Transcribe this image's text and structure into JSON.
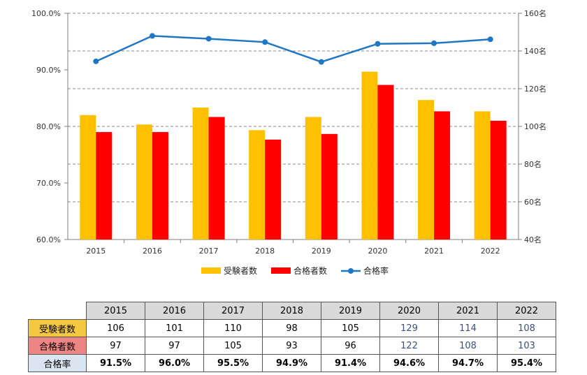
{
  "chart_data": {
    "type": "bar",
    "categories": [
      "2015",
      "2016",
      "2017",
      "2018",
      "2019",
      "2020",
      "2021",
      "2022"
    ],
    "series": [
      {
        "name": "受験者数",
        "type": "bar",
        "axis": "right",
        "color": "#ffc000",
        "values": [
          106,
          101,
          110,
          98,
          105,
          129,
          114,
          108
        ]
      },
      {
        "name": "合格者数",
        "type": "bar",
        "axis": "right",
        "color": "#ff0000",
        "values": [
          97,
          97,
          105,
          93,
          96,
          122,
          108,
          103
        ]
      },
      {
        "name": "合格率",
        "type": "line",
        "axis": "left",
        "color": "#1f77c4",
        "values": [
          91.5,
          96.0,
          95.5,
          94.9,
          91.4,
          94.6,
          94.7,
          95.4
        ]
      }
    ],
    "left_axis": {
      "range": [
        60,
        100
      ],
      "ticks": [
        "60.0%",
        "70.0%",
        "80.0%",
        "90.0%",
        "100.0%"
      ]
    },
    "right_axis": {
      "range": [
        40,
        160
      ],
      "ticks": [
        "40名",
        "60名",
        "80名",
        "100名",
        "120名",
        "140名",
        "160名"
      ]
    },
    "grid": "dashed horizontal",
    "legend_position": "bottom"
  },
  "table": {
    "years": [
      "2015",
      "2016",
      "2017",
      "2018",
      "2019",
      "2020",
      "2021",
      "2022"
    ],
    "rows": [
      {
        "label": "受験者数",
        "values": [
          "106",
          "101",
          "110",
          "98",
          "105",
          "129",
          "114",
          "108"
        ]
      },
      {
        "label": "合格者数",
        "values": [
          "97",
          "97",
          "105",
          "93",
          "96",
          "122",
          "108",
          "103"
        ]
      },
      {
        "label": "合格率",
        "values": [
          "91.5%",
          "96.0%",
          "95.5%",
          "94.9%",
          "91.4%",
          "94.6%",
          "94.7%",
          "95.4%"
        ]
      }
    ]
  },
  "colors": {
    "applicants": "#ffc000",
    "passers": "#ff0000",
    "rate": "#1f77c4"
  }
}
